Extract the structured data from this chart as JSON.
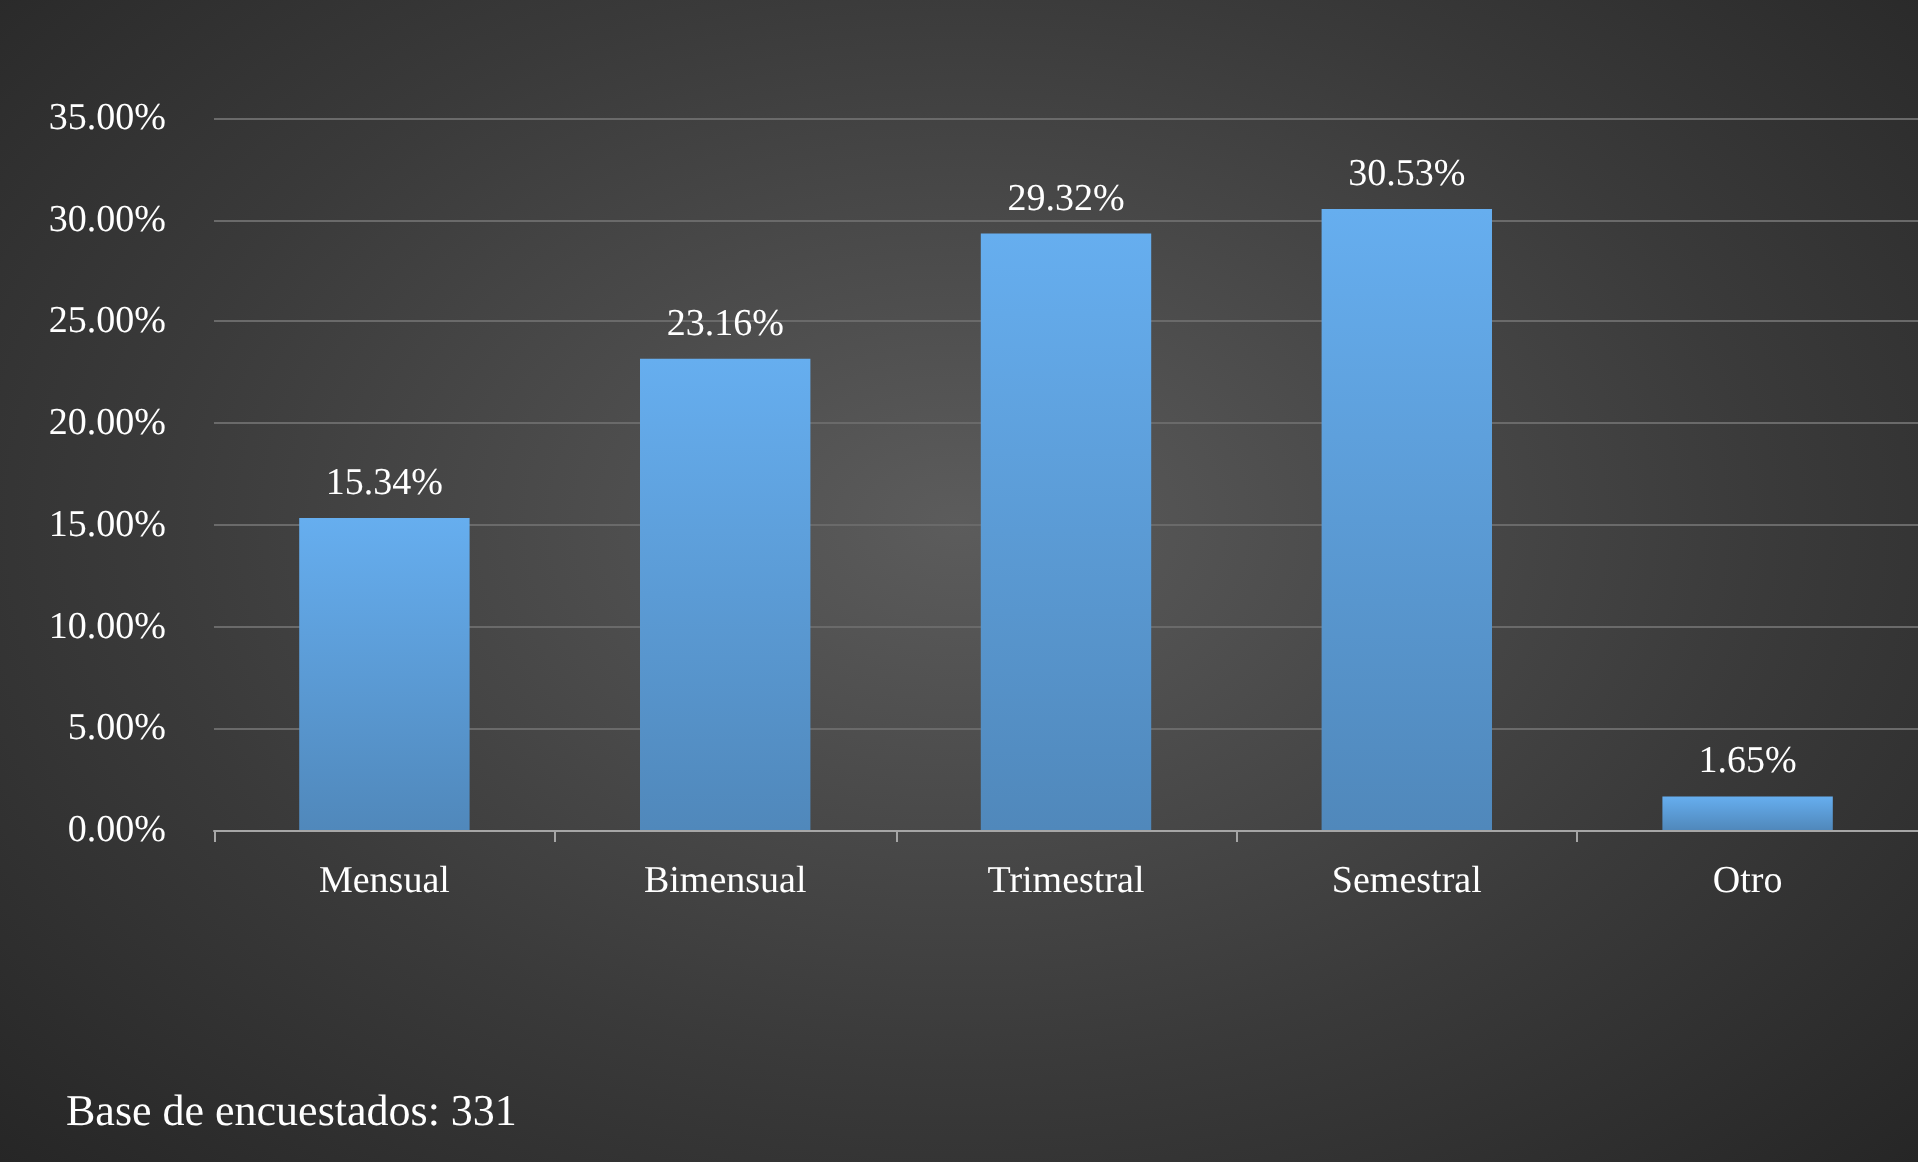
{
  "chart_data": {
    "type": "bar",
    "categories": [
      "Mensual",
      "Bimensual",
      "Trimestral",
      "Semestral",
      "Otro"
    ],
    "values": [
      15.34,
      23.16,
      29.32,
      30.53,
      1.65
    ],
    "value_labels": [
      "15.34%",
      "23.16%",
      "29.32%",
      "30.53%",
      "1.65%"
    ],
    "color": "#5b9bd5",
    "ylim": [
      0,
      35
    ],
    "yticks": [
      {
        "value": 0,
        "label": "0.00%"
      },
      {
        "value": 5,
        "label": "5.00%"
      },
      {
        "value": 10,
        "label": "10.00%"
      },
      {
        "value": 15,
        "label": "15.00%"
      },
      {
        "value": 20,
        "label": "20.00%"
      },
      {
        "value": 25,
        "label": "25.00%"
      },
      {
        "value": 30,
        "label": "30.00%"
      },
      {
        "value": 35,
        "label": "35.00%"
      }
    ],
    "grid": "y",
    "annotations": [
      "Base de encuestados: 331"
    ]
  }
}
